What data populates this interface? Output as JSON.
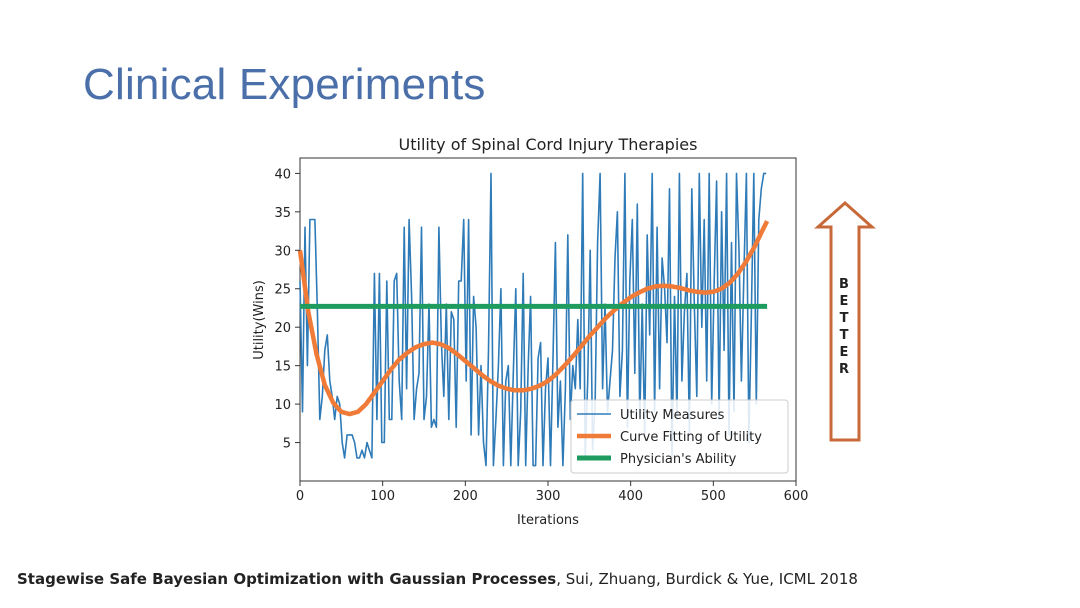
{
  "slide": {
    "title": "Clinical Experiments",
    "better_letters": [
      "B",
      "E",
      "T",
      "T",
      "E",
      "R"
    ],
    "citation_bold": "Stagewise Safe Bayesian Optimization with Gaussian Processes",
    "citation_rest": ", Sui, Zhuang, Burdick & Yue, ICML 2018"
  },
  "colors": {
    "title": "#4a6fa9",
    "utility_measures": "#2f7bb8",
    "curve_fit": "#f07a37",
    "physician": "#1e9c5f",
    "arrow": "#c8693a"
  },
  "chart_data": {
    "type": "line",
    "title": "Utility of Spinal Cord Injury Therapies",
    "xlabel": "Iterations",
    "ylabel": "Utility(Wins)",
    "xlim": [
      0,
      600
    ],
    "ylim": [
      0,
      42
    ],
    "xticks": [
      0,
      100,
      200,
      300,
      400,
      500,
      600
    ],
    "yticks": [
      5,
      10,
      15,
      20,
      25,
      30,
      35,
      40
    ],
    "grid": false,
    "legend_position": "lower-right",
    "series": [
      {
        "name": "Utility Measures",
        "style": "thin",
        "x": [
          0,
          3,
          6,
          9,
          12,
          15,
          18,
          21,
          24,
          27,
          30,
          33,
          36,
          39,
          42,
          45,
          48,
          51,
          54,
          57,
          60,
          63,
          66,
          69,
          72,
          75,
          78,
          81,
          84,
          87,
          90,
          93,
          96,
          99,
          102,
          105,
          108,
          111,
          114,
          117,
          120,
          123,
          126,
          129,
          132,
          135,
          138,
          141,
          144,
          147,
          150,
          153,
          156,
          159,
          162,
          165,
          168,
          171,
          174,
          177,
          180,
          183,
          186,
          189,
          192,
          195,
          198,
          201,
          204,
          207,
          210,
          213,
          216,
          219,
          222,
          225,
          228,
          231,
          234,
          237,
          240,
          243,
          246,
          249,
          252,
          255,
          258,
          261,
          264,
          267,
          270,
          273,
          276,
          279,
          282,
          285,
          288,
          291,
          294,
          297,
          300,
          303,
          306,
          309,
          312,
          315,
          318,
          321,
          324,
          327,
          330,
          333,
          336,
          339,
          342,
          345,
          348,
          351,
          354,
          357,
          360,
          363,
          366,
          369,
          372,
          375,
          378,
          381,
          384,
          387,
          390,
          393,
          396,
          399,
          402,
          405,
          408,
          411,
          414,
          417,
          420,
          423,
          426,
          429,
          432,
          435,
          438,
          441,
          444,
          447,
          450,
          453,
          456,
          459,
          462,
          465,
          468,
          471,
          474,
          477,
          480,
          483,
          486,
          489,
          492,
          495,
          498,
          501,
          504,
          507,
          510,
          513,
          516,
          519,
          522,
          525,
          528,
          531,
          534,
          537,
          540,
          543,
          546,
          549,
          552,
          555,
          558,
          561,
          564
        ],
        "y": [
          26,
          9,
          33,
          15,
          34,
          34,
          34,
          22,
          8,
          11,
          17,
          19,
          13,
          11,
          8,
          11,
          10,
          5,
          3,
          6,
          6,
          6,
          5,
          3,
          3,
          4,
          3,
          5,
          4,
          3,
          27,
          8,
          27,
          5,
          5,
          26,
          8,
          8,
          26,
          27,
          13,
          8,
          33,
          12,
          34,
          24,
          8,
          12,
          14,
          33,
          8,
          11,
          23,
          7,
          8,
          7,
          33,
          18,
          11,
          23,
          8,
          22,
          21,
          7,
          26,
          26,
          34,
          13,
          34,
          6,
          24,
          20,
          6,
          15,
          5,
          2,
          17,
          40,
          2,
          8,
          15,
          25,
          2,
          13,
          15,
          2,
          14,
          25,
          2,
          9,
          27,
          2,
          15,
          24,
          2,
          2,
          16,
          18,
          2,
          12,
          16,
          2,
          16,
          31,
          7,
          13,
          2,
          12,
          32,
          8,
          15,
          12,
          21,
          12,
          40,
          3,
          13,
          30,
          4,
          10,
          31,
          40,
          12,
          23,
          9,
          13,
          17,
          29,
          35,
          11,
          17,
          40,
          7,
          26,
          34,
          14,
          36,
          8,
          23,
          6,
          32,
          19,
          40,
          9,
          33,
          12,
          29,
          25,
          18,
          38,
          3,
          24,
          8,
          40,
          13,
          22,
          27,
          6,
          38,
          23,
          11,
          40,
          20,
          34,
          13,
          40,
          10,
          26,
          39,
          8,
          35,
          17,
          40,
          6,
          31,
          9,
          40,
          30,
          13,
          27,
          40,
          5,
          22,
          40,
          10,
          34,
          38,
          40,
          40
        ]
      },
      {
        "name": "Curve Fitting of Utility",
        "style": "thick",
        "x": [
          0,
          10,
          20,
          30,
          40,
          50,
          60,
          70,
          80,
          90,
          100,
          110,
          120,
          130,
          140,
          150,
          160,
          170,
          180,
          190,
          200,
          210,
          220,
          230,
          240,
          250,
          260,
          270,
          280,
          290,
          300,
          310,
          320,
          330,
          340,
          350,
          360,
          370,
          380,
          390,
          400,
          410,
          420,
          430,
          440,
          450,
          460,
          470,
          480,
          490,
          500,
          510,
          520,
          530,
          540,
          550,
          560,
          565
        ],
        "y": [
          30,
          22,
          16.5,
          12.5,
          10.2,
          9,
          8.7,
          9,
          10,
          11.5,
          13,
          14.5,
          15.8,
          16.7,
          17.4,
          17.8,
          18,
          17.8,
          17.3,
          16.5,
          15.6,
          14.7,
          13.8,
          13,
          12.4,
          12,
          11.8,
          11.8,
          12,
          12.4,
          13,
          13.9,
          15,
          16.2,
          17.5,
          18.8,
          20,
          21.2,
          22.2,
          23.1,
          23.9,
          24.5,
          25,
          25.3,
          25.4,
          25.3,
          25.1,
          24.8,
          24.6,
          24.5,
          24.6,
          25,
          25.8,
          27,
          28.6,
          30.5,
          32.7,
          33.8
        ]
      },
      {
        "name": "Physician's Ability",
        "style": "thick",
        "x": [
          0,
          565
        ],
        "y": [
          22.7,
          22.7
        ]
      }
    ]
  }
}
